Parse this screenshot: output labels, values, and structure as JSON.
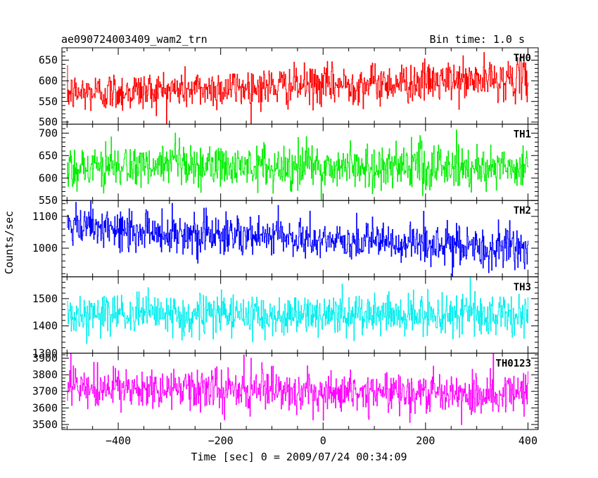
{
  "header": {
    "title": "ae090724003409_wam2_trn",
    "bin_time": "Bin time: 1.0 s"
  },
  "chart_data": {
    "type": "line",
    "xlabel": "Time [sec] 0 = 2009/07/24 00:34:09",
    "ylabel": "Counts/sec",
    "xlim": [
      -510,
      420
    ],
    "x_ticks": [
      -400,
      -200,
      0,
      200,
      400
    ],
    "x_tick_labels": [
      "−400",
      "−200",
      "0",
      "200",
      "400"
    ],
    "x_sample_range": [
      -500,
      400
    ],
    "bin_time_s": 1.0,
    "panels": [
      {
        "label": "TH0",
        "color": "#ff0000",
        "ylim": [
          495,
          680
        ],
        "y_ticks": [
          500,
          550,
          600,
          650
        ],
        "y_tick_labels": [
          "500",
          "550",
          "600",
          "650"
        ],
        "mean_start": 570,
        "mean_end": 605,
        "spread": 24
      },
      {
        "label": "TH1",
        "color": "#00ee00",
        "ylim": [
          550,
          720
        ],
        "y_ticks": [
          550,
          600,
          650,
          700
        ],
        "y_tick_labels": [
          "550",
          "600",
          "650",
          "700"
        ],
        "mean_start": 625,
        "mean_end": 625,
        "spread": 25
      },
      {
        "label": "TH2",
        "color": "#0000ff",
        "ylim": [
          910,
          1150
        ],
        "y_ticks": [
          1000,
          1100
        ],
        "y_tick_labels": [
          "1000",
          "1100"
        ],
        "mean_start": 1065,
        "mean_end": 995,
        "spread": 32
      },
      {
        "label": "TH3",
        "color": "#00eeee",
        "ylim": [
          1300,
          1580
        ],
        "y_ticks": [
          1300,
          1400,
          1500
        ],
        "y_tick_labels": [
          "1300",
          "1400",
          "1500"
        ],
        "mean_start": 1440,
        "mean_end": 1440,
        "spread": 38
      },
      {
        "label": "TH0123",
        "color": "#ff00ff",
        "ylim": [
          3470,
          3930
        ],
        "y_ticks": [
          3500,
          3600,
          3700,
          3800,
          3900
        ],
        "y_tick_labels": [
          "3500",
          "3600",
          "3700",
          "3800",
          "3900"
        ],
        "mean_start": 3715,
        "mean_end": 3690,
        "spread": 62
      }
    ]
  }
}
